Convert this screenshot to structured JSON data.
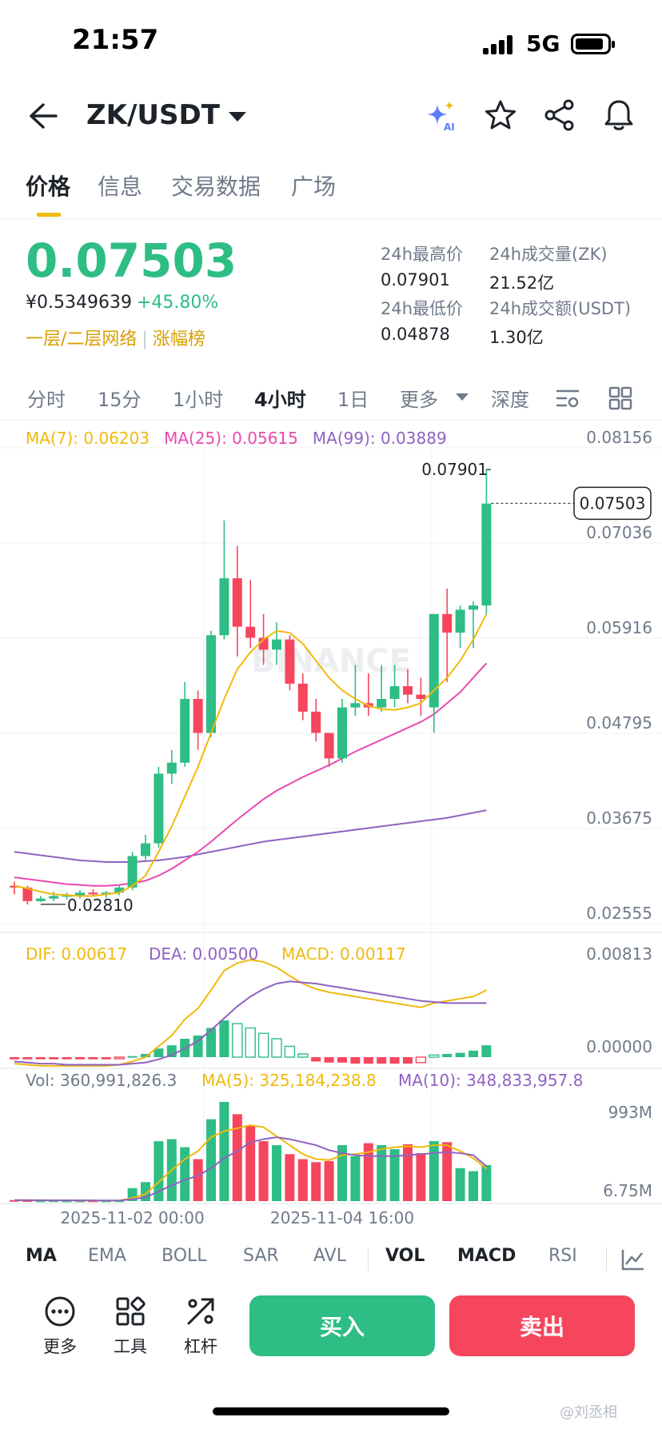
{
  "status": {
    "time": "21:57",
    "network": "5G"
  },
  "header": {
    "pair": "ZK/USDT",
    "icons": [
      "back-arrow-icon",
      "ai-sparkle-icon",
      "star-icon",
      "share-icon",
      "bell-icon"
    ]
  },
  "tabs": [
    "价格",
    "信息",
    "交易数据",
    "广场"
  ],
  "ticker": {
    "price": "0.07503",
    "cny": "¥0.5349639",
    "change": "+45.80%",
    "tags": [
      "一层/二层网络",
      "涨幅榜"
    ],
    "stats": [
      {
        "label": "24h最高价",
        "value": "0.07901"
      },
      {
        "label": "24h成交量(ZK)",
        "value": "21.52亿"
      },
      {
        "label": "24h最低价",
        "value": "0.04878"
      },
      {
        "label": "24h成交额(USDT)",
        "value": "1.30亿"
      }
    ]
  },
  "intervals": [
    "分时",
    "15分",
    "1小时",
    "4小时",
    "1日",
    "更多",
    "深度"
  ],
  "active_interval": "4小时",
  "ma_legend": {
    "ma7": "MA(7): 0.06203",
    "ma25": "MA(25): 0.05615",
    "ma99": "MA(99): 0.03889"
  },
  "macd_legend": {
    "dif": "DIF: 0.00617",
    "dea": "DEA: 0.00500",
    "macd": "MACD: 0.00117"
  },
  "vol_legend": {
    "vol": "Vol: 360,991,826.3",
    "ma5": "MA(5): 325,184,238.8",
    "ma10": "MA(10): 348,833,957.8"
  },
  "colors": {
    "up": "#2ebd85",
    "down": "#f6465d",
    "ma7": "#f0b90b",
    "ma25": "#e84ab0",
    "ma99": "#9061c2",
    "accent": "#f0b90b"
  },
  "indicator_tabs": [
    "MA",
    "EMA",
    "BOLL",
    "SAR",
    "AVL",
    "VOL",
    "MACD",
    "RSI"
  ],
  "bottom": {
    "tools": [
      "更多",
      "工具",
      "杠杆"
    ],
    "buy": "买入",
    "sell": "卖出"
  },
  "watermark": "@刘丞相",
  "chart_data": [
    {
      "type": "candlestick",
      "y_ticks": [
        "0.08156",
        "0.07036",
        "0.05916",
        "0.04795",
        "0.03675",
        "0.02555"
      ],
      "y_tick_values": [
        0.08156,
        0.07036,
        0.05916,
        0.04795,
        0.03675,
        0.02555
      ],
      "x_ticks": [
        "2025-11-02 00:00",
        "2025-11-04 16:00"
      ],
      "x_tick_index": [
        9,
        25
      ],
      "current_price_label": "0.07503",
      "high_label": "0.07901",
      "low_label": "0.02810",
      "watermark": "BINANCE",
      "candles": [
        [
          0.03,
          0.0305,
          0.029,
          0.0298
        ],
        [
          0.0298,
          0.03,
          0.0278,
          0.0282
        ],
        [
          0.0282,
          0.0288,
          0.0281,
          0.0285
        ],
        [
          0.0285,
          0.0293,
          0.0282,
          0.0288
        ],
        [
          0.0288,
          0.0292,
          0.0284,
          0.0289
        ],
        [
          0.0289,
          0.0295,
          0.0285,
          0.0292
        ],
        [
          0.0292,
          0.0296,
          0.0288,
          0.029
        ],
        [
          0.029,
          0.0294,
          0.0286,
          0.0292
        ],
        [
          0.0292,
          0.03,
          0.0289,
          0.0298
        ],
        [
          0.0298,
          0.034,
          0.0295,
          0.0335
        ],
        [
          0.0335,
          0.036,
          0.033,
          0.035
        ],
        [
          0.035,
          0.044,
          0.0345,
          0.0432
        ],
        [
          0.0432,
          0.046,
          0.042,
          0.0445
        ],
        [
          0.0445,
          0.054,
          0.044,
          0.052
        ],
        [
          0.052,
          0.053,
          0.046,
          0.048
        ],
        [
          0.048,
          0.06,
          0.0475,
          0.0595
        ],
        [
          0.0595,
          0.073,
          0.059,
          0.0662
        ],
        [
          0.0662,
          0.07,
          0.057,
          0.0605
        ],
        [
          0.0605,
          0.066,
          0.058,
          0.0592
        ],
        [
          0.0592,
          0.062,
          0.056,
          0.0578
        ],
        [
          0.0578,
          0.061,
          0.056,
          0.059
        ],
        [
          0.059,
          0.0595,
          0.053,
          0.0538
        ],
        [
          0.0538,
          0.055,
          0.0495,
          0.0505
        ],
        [
          0.0505,
          0.052,
          0.047,
          0.048
        ],
        [
          0.048,
          0.048,
          0.044,
          0.045
        ],
        [
          0.045,
          0.052,
          0.0445,
          0.051
        ],
        [
          0.051,
          0.056,
          0.05,
          0.0515
        ],
        [
          0.0515,
          0.055,
          0.05,
          0.051
        ],
        [
          0.051,
          0.056,
          0.0505,
          0.052
        ],
        [
          0.052,
          0.056,
          0.051,
          0.0535
        ],
        [
          0.0535,
          0.0555,
          0.0515,
          0.0525
        ],
        [
          0.0525,
          0.0545,
          0.05,
          0.052
        ],
        [
          0.051,
          0.062,
          0.048,
          0.062
        ],
        [
          0.062,
          0.065,
          0.054,
          0.0598
        ],
        [
          0.0598,
          0.063,
          0.058,
          0.0625
        ],
        [
          0.0625,
          0.0635,
          0.058,
          0.063
        ],
        [
          0.063,
          0.079,
          0.062,
          0.075
        ]
      ],
      "ma7": [
        0.03,
        0.0297,
        0.0293,
        0.029,
        0.0289,
        0.0288,
        0.0288,
        0.029,
        0.0292,
        0.03,
        0.0312,
        0.034,
        0.037,
        0.0405,
        0.044,
        0.048,
        0.052,
        0.0555,
        0.0575,
        0.059,
        0.06,
        0.0598,
        0.0585,
        0.0565,
        0.0545,
        0.053,
        0.052,
        0.0512,
        0.0508,
        0.0507,
        0.051,
        0.0515,
        0.053,
        0.0545,
        0.0565,
        0.059,
        0.062
      ],
      "ma25": [
        0.031,
        0.0308,
        0.0306,
        0.0304,
        0.0302,
        0.0301,
        0.03,
        0.03,
        0.0301,
        0.0303,
        0.0306,
        0.0312,
        0.032,
        0.033,
        0.034,
        0.0352,
        0.0365,
        0.0378,
        0.039,
        0.0402,
        0.0412,
        0.042,
        0.0428,
        0.0435,
        0.0442,
        0.045,
        0.0458,
        0.0465,
        0.0472,
        0.0479,
        0.0486,
        0.0493,
        0.0502,
        0.0515,
        0.0528,
        0.0545,
        0.0562
      ],
      "ma99": [
        0.034,
        0.0338,
        0.0336,
        0.0334,
        0.0332,
        0.033,
        0.0329,
        0.0328,
        0.0328,
        0.0328,
        0.0329,
        0.033,
        0.0332,
        0.0334,
        0.0337,
        0.034,
        0.0343,
        0.0346,
        0.0349,
        0.0352,
        0.0354,
        0.0356,
        0.0358,
        0.036,
        0.0362,
        0.0364,
        0.0366,
        0.0368,
        0.037,
        0.0372,
        0.0374,
        0.0376,
        0.0378,
        0.038,
        0.0383,
        0.0386,
        0.0389
      ]
    },
    {
      "type": "macd",
      "y_ticks": [
        "0.00813",
        "0.00000"
      ],
      "hist": [
        -0.0002,
        -0.0002,
        -0.0002,
        -0.0002,
        -0.0002,
        -0.0002,
        -0.0002,
        -0.0002,
        -0.0001,
        0.0001,
        0.0003,
        0.0008,
        0.0011,
        0.0017,
        0.002,
        0.0027,
        0.0034,
        0.0031,
        0.0027,
        0.0022,
        0.0017,
        0.001,
        0.0003,
        -0.0004,
        -0.0005,
        -0.0005,
        -0.0006,
        -0.0006,
        -0.0006,
        -0.0006,
        -0.0006,
        -0.0005,
        0.0002,
        0.0003,
        0.0004,
        0.0006,
        0.0011
      ],
      "dif": [
        -0.0006,
        -0.0007,
        -0.0008,
        -0.0008,
        -0.0008,
        -0.0008,
        -0.0008,
        -0.0008,
        -0.0007,
        -0.0004,
        0.0,
        0.001,
        0.002,
        0.0035,
        0.0045,
        0.0062,
        0.008,
        0.0087,
        0.009,
        0.0088,
        0.0083,
        0.0075,
        0.0068,
        0.0063,
        0.006,
        0.0058,
        0.0056,
        0.0054,
        0.0052,
        0.005,
        0.0048,
        0.0046,
        0.005,
        0.0052,
        0.0054,
        0.0056,
        0.0062
      ],
      "dea": [
        -0.0004,
        -0.0005,
        -0.0006,
        -0.0006,
        -0.0007,
        -0.0007,
        -0.0007,
        -0.0007,
        -0.0007,
        -0.0006,
        -0.0005,
        -0.0002,
        0.0002,
        0.0008,
        0.0015,
        0.0025,
        0.0036,
        0.0047,
        0.0056,
        0.0063,
        0.0068,
        0.007,
        0.0069,
        0.0068,
        0.0066,
        0.0064,
        0.0062,
        0.006,
        0.0058,
        0.0056,
        0.0054,
        0.0052,
        0.0051,
        0.005,
        0.005,
        0.005,
        0.005
      ]
    },
    {
      "type": "bar",
      "y_ticks": [
        "993M",
        "6.75M"
      ],
      "volume_M": [
        10,
        8,
        6,
        6,
        5,
        5,
        6,
        5,
        6,
        130,
        190,
        600,
        620,
        540,
        420,
        820,
        993,
        870,
        760,
        600,
        560,
        470,
        420,
        390,
        400,
        560,
        450,
        580,
        560,
        520,
        570,
        480,
        600,
        590,
        330,
        300,
        361
      ],
      "ma5_M": [
        10,
        9,
        8,
        7,
        7,
        6,
        5,
        5,
        6,
        30,
        70,
        190,
        310,
        420,
        500,
        640,
        700,
        730,
        760,
        740,
        650,
        560,
        470,
        420,
        410,
        460,
        470,
        490,
        520,
        540,
        550,
        540,
        560,
        560,
        500,
        430,
        325
      ],
      "ma10_M": [
        10,
        9,
        9,
        8,
        8,
        7,
        7,
        6,
        6,
        19,
        37,
        96,
        158,
        212,
        255,
        330,
        430,
        500,
        590,
        620,
        640,
        620,
        590,
        560,
        510,
        480,
        460,
        450,
        450,
        450,
        460,
        470,
        480,
        490,
        480,
        460,
        349
      ]
    }
  ]
}
